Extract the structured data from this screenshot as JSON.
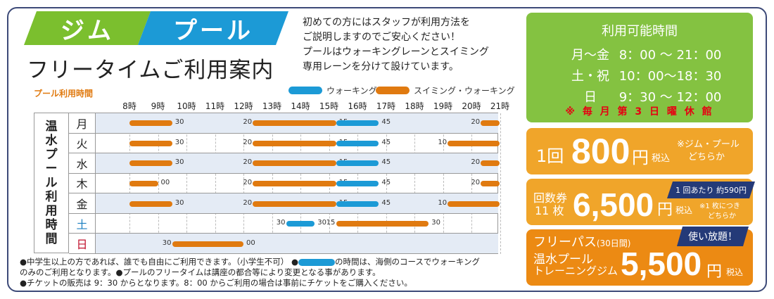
{
  "header": {
    "tag_gym": "ジム",
    "tag_pool": "プール",
    "title": "フリータイムご利用案内",
    "intro": [
      "初めての方にはスタッフが利用方法を",
      "ご説明しますのでご安心ください！",
      "プールはウォーキングレーンとスイミング",
      "専用レーンを分けて設けています。"
    ]
  },
  "legend": {
    "walk": "ウォーキングのみ",
    "swim": "スイミング・ウォーキング"
  },
  "schedule": {
    "label": "プール利用時間",
    "side_title": [
      "温",
      "水",
      "プ",
      "ー",
      "ル",
      "利",
      "用",
      "時",
      "間"
    ],
    "hours": [
      "8時",
      "9時",
      "10時",
      "11時",
      "12時",
      "13時",
      "14時",
      "15時",
      "16時",
      "17時",
      "18時",
      "19時",
      "20時",
      "21時"
    ],
    "colors": {
      "swim": "#e07a10",
      "walk": "#1c9ad6"
    },
    "rows": [
      {
        "day": "月",
        "day_color": "#222222",
        "bars": [
          {
            "type": "swim",
            "start": 8,
            "end": 9.5,
            "sl": "",
            "el": "30"
          },
          {
            "type": "swim",
            "start": 12.33,
            "end": 15.25,
            "sl": "20",
            "el": "15"
          },
          {
            "type": "walk",
            "start": 15.25,
            "end": 16.75,
            "sl": "",
            "el": "45"
          },
          {
            "type": "swim",
            "start": 20.33,
            "end": 21,
            "sl": "20",
            "el": ""
          }
        ]
      },
      {
        "day": "火",
        "day_color": "#222222",
        "bars": [
          {
            "type": "swim",
            "start": 8,
            "end": 9.5,
            "sl": "",
            "el": "30"
          },
          {
            "type": "swim",
            "start": 12.33,
            "end": 15.25,
            "sl": "20",
            "el": "15"
          },
          {
            "type": "walk",
            "start": 15.25,
            "end": 16.75,
            "sl": "",
            "el": "45"
          },
          {
            "type": "swim",
            "start": 19.17,
            "end": 21,
            "sl": "10",
            "el": ""
          }
        ]
      },
      {
        "day": "水",
        "day_color": "#222222",
        "bars": [
          {
            "type": "swim",
            "start": 8,
            "end": 9.5,
            "sl": "",
            "el": "30"
          },
          {
            "type": "swim",
            "start": 12.33,
            "end": 15.25,
            "sl": "20",
            "el": "15"
          },
          {
            "type": "walk",
            "start": 15.25,
            "end": 16.75,
            "sl": "",
            "el": "45"
          },
          {
            "type": "swim",
            "start": 20.33,
            "end": 21,
            "sl": "20",
            "el": ""
          }
        ]
      },
      {
        "day": "木",
        "day_color": "#222222",
        "bars": [
          {
            "type": "swim",
            "start": 8,
            "end": 9,
            "sl": "",
            "el": "00"
          },
          {
            "type": "swim",
            "start": 12.33,
            "end": 15.25,
            "sl": "20",
            "el": "15"
          },
          {
            "type": "walk",
            "start": 15.25,
            "end": 16.75,
            "sl": "",
            "el": "45"
          },
          {
            "type": "swim",
            "start": 20.33,
            "end": 21,
            "sl": "20",
            "el": ""
          }
        ]
      },
      {
        "day": "金",
        "day_color": "#222222",
        "bars": [
          {
            "type": "swim",
            "start": 8,
            "end": 9.5,
            "sl": "",
            "el": "30"
          },
          {
            "type": "swim",
            "start": 12.33,
            "end": 15.25,
            "sl": "20",
            "el": "15"
          },
          {
            "type": "walk",
            "start": 15.25,
            "end": 16.75,
            "sl": "",
            "el": "45"
          },
          {
            "type": "swim",
            "start": 19.17,
            "end": 21,
            "sl": "10",
            "el": ""
          }
        ]
      },
      {
        "day": "土",
        "day_color": "#1c7fc0",
        "bars": [
          {
            "type": "walk",
            "start": 13.5,
            "end": 14.5,
            "sl": "30",
            "el": "30"
          },
          {
            "type": "swim",
            "start": 15.25,
            "end": 18.5,
            "sl": "15",
            "el": "30"
          }
        ]
      },
      {
        "day": "日",
        "day_color": "#c0102c",
        "bars": [
          {
            "type": "swim",
            "start": 9.5,
            "end": 12,
            "sl": "30",
            "el": "00"
          }
        ]
      }
    ]
  },
  "notes": {
    "line1a": "●中学生以上の方であれば、誰でも自由にご利用できます。（小学生不可） ●",
    "line1b": "の時間は、海側のコースでウォーキング",
    "line2": "のみのご利用となります。●プールのフリータイムは講座の都合等により変更となる事があります。",
    "line3": "●チケットの販売は 9：30 からとなります。8：00 からご利用の場合は事前にチケットをご購入ください。"
  },
  "hours_panel": {
    "title": "利用可能時間",
    "lines": [
      {
        "day": "月〜金",
        "time": "8：00 〜 21：00"
      },
      {
        "day": "土・祝",
        "time": "10：00〜18：30"
      },
      {
        "day": "日",
        "time": "9：30 〜 12：00"
      }
    ],
    "closed": "※ 毎 月 第 3 日 曜 休 館"
  },
  "single": {
    "prefix": "1回",
    "price": "800",
    "unit": "円",
    "tax": "税込",
    "note1": "※ジム・プール",
    "note2": "どちらか"
  },
  "ticket": {
    "label1": "回数券",
    "label2": "11 枚",
    "price": "6,500",
    "unit": "円",
    "tax": "税込",
    "note1": "※1 枚につき",
    "note2": "どちらか",
    "badge_pre": "1 回あたり",
    "badge_price": "約590円"
  },
  "freepass": {
    "title": "フリーパス",
    "title_sub": "(30日間)",
    "badge": "使い放題！",
    "line1": "温水プール",
    "line2": "トレーニングジム",
    "price": "5,500",
    "unit": "円",
    "tax": "税込"
  },
  "colors": {
    "gym_green": "#7bbf2e",
    "pool_blue": "#1c9ad6",
    "orange": "#f0a52a",
    "navy": "#243a78"
  }
}
